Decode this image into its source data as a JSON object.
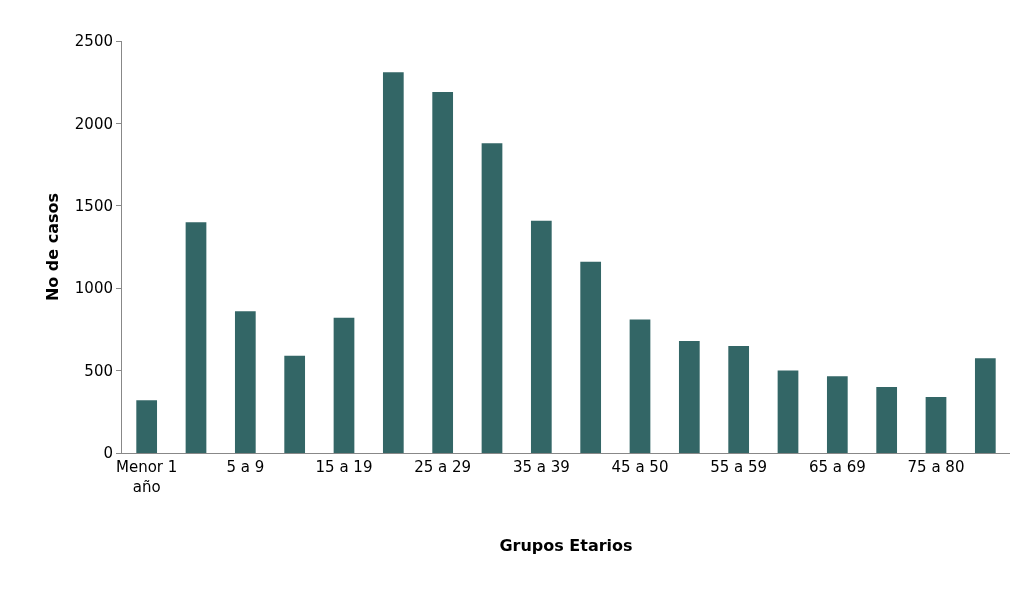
{
  "chart_data": {
    "type": "bar",
    "xlabel": "Grupos Etarios",
    "ylabel": "No de casos",
    "categories": [
      "Menor 1 año",
      null,
      "5 a 9",
      null,
      "15 a 19",
      null,
      "25 a 29",
      null,
      "35 a 39",
      null,
      "45 a 50",
      null,
      "55 a 59",
      null,
      "65 a 69",
      null,
      "75 a 80",
      null
    ],
    "values": [
      320,
      1400,
      860,
      590,
      820,
      2310,
      2190,
      1880,
      1410,
      1160,
      810,
      680,
      650,
      500,
      465,
      400,
      340,
      575
    ],
    "color": "#336666",
    "ylim": [
      0,
      2500
    ],
    "yticks": [
      0,
      500,
      1000,
      1500,
      2000,
      2500
    ]
  }
}
